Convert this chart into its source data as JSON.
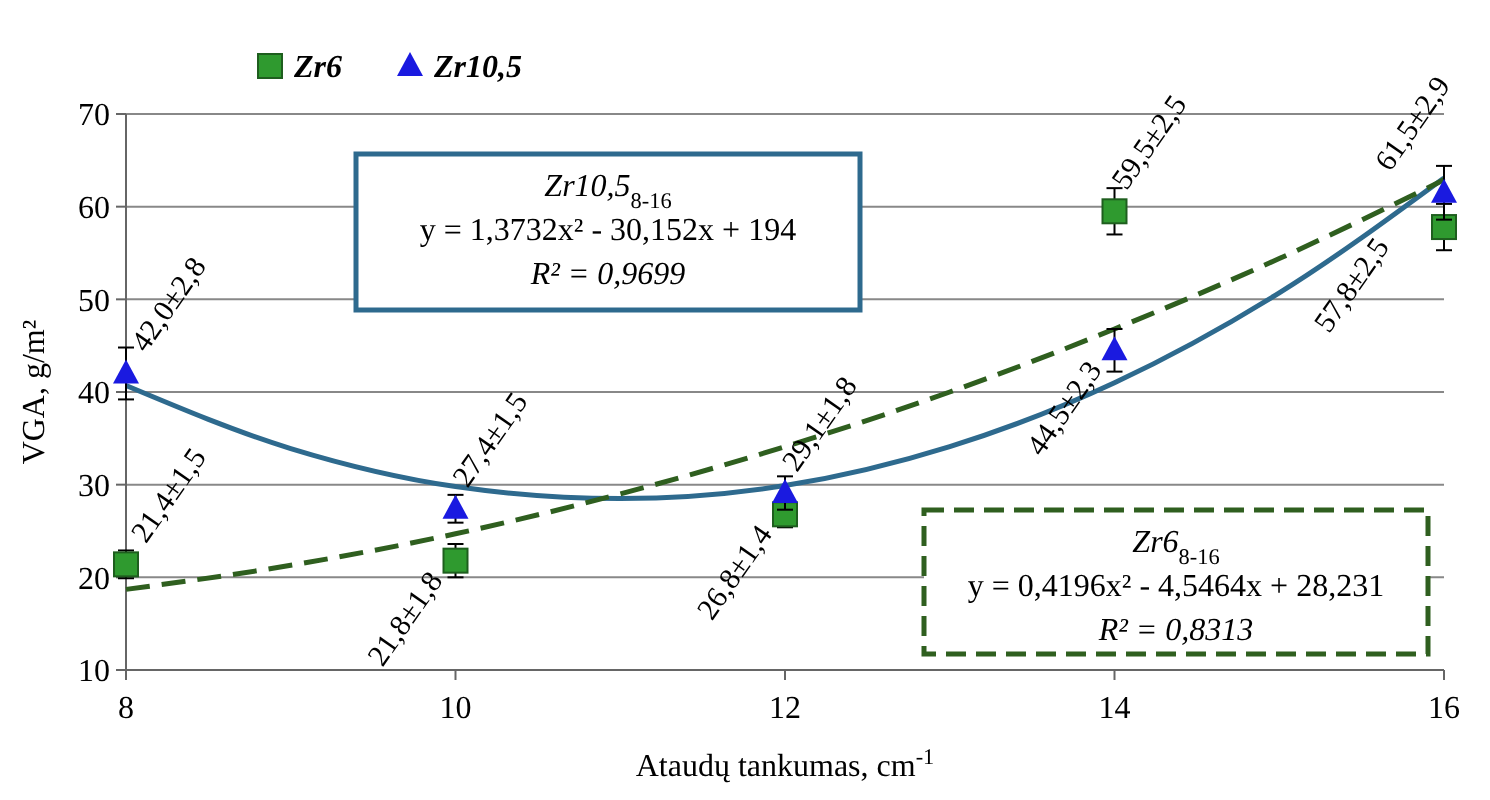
{
  "chart_data": {
    "type": "scatter",
    "xlabel": "Ataudų tankumas, cm$^{-1}$",
    "ylabel": "VGA, g/m²",
    "x": [
      8,
      10,
      12,
      14,
      16
    ],
    "xlim": [
      8,
      16
    ],
    "xticks": [
      8,
      10,
      12,
      14,
      16
    ],
    "ylim": [
      10,
      70
    ],
    "yticks": [
      10,
      20,
      30,
      40,
      50,
      60,
      70
    ],
    "grid": "y",
    "legend": "top left",
    "series": [
      {
        "name": "Zr6",
        "color": "#2f9a2f",
        "marker": "square",
        "values": [
          21.4,
          21.8,
          26.8,
          59.5,
          57.8
        ],
        "errors": [
          1.5,
          1.8,
          1.4,
          2.5,
          2.5
        ],
        "value_labels": [
          "21,4±1,5",
          "21,8±1,8",
          "26,8±1,4",
          "59,5±2,5",
          "57,8±2,5"
        ]
      },
      {
        "name": "Zr10,5",
        "color": "#1a1ae0",
        "marker": "triangle",
        "values": [
          42.0,
          27.4,
          29.1,
          44.5,
          61.5
        ],
        "errors": [
          2.8,
          1.5,
          1.8,
          2.3,
          2.9
        ],
        "value_labels": [
          "42,0±2,8",
          "27,4±1,5",
          "29,1±1,8",
          "44,5±2,3",
          "61,5±2,9"
        ]
      },
      {
        "type": "line",
        "color": "#2e6a8e",
        "line_style": "solid",
        "x": [
          8,
          9,
          10,
          11,
          12,
          13,
          14,
          15,
          16
        ],
        "values": [
          40.7,
          33.9,
          29.8,
          28.5,
          29.9,
          34.1,
          41.0,
          50.7,
          63.1
        ]
      },
      {
        "type": "line",
        "color": "#2f5f1f",
        "line_style": "dashed",
        "x": [
          8,
          9,
          10,
          11,
          12,
          13,
          14,
          15,
          16
        ],
        "values": [
          18.7,
          21.3,
          24.7,
          29.0,
          34.1,
          40.0,
          46.8,
          54.4,
          62.9
        ]
      }
    ],
    "annotations": [
      "Zr10,5$_{8-16}$\ny = 1,3732x² - 30,152x + 194\nR² = 0,9699",
      "Zr6$_{8-16}$\ny = 0,4196x² - 4,5464x + 28,231\nR² = 0,8313"
    ]
  }
}
